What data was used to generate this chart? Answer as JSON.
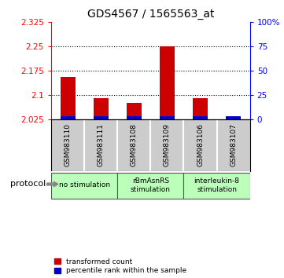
{
  "title": "GDS4567 / 1565563_at",
  "samples": [
    "GSM983110",
    "GSM983111",
    "GSM983108",
    "GSM983109",
    "GSM983106",
    "GSM983107"
  ],
  "red_values": [
    2.155,
    2.09,
    2.075,
    2.25,
    2.09,
    2.035
  ],
  "blue_percentiles": [
    3,
    3,
    3,
    3,
    3,
    3
  ],
  "ylim": [
    2.025,
    2.325
  ],
  "yticks": [
    2.025,
    2.1,
    2.175,
    2.25,
    2.325
  ],
  "ytick_labels": [
    "2.025",
    "2.1",
    "2.175",
    "2.25",
    "2.325"
  ],
  "right_yticks": [
    0,
    25,
    50,
    75,
    100
  ],
  "right_ytick_labels": [
    "0",
    "25",
    "50",
    "75",
    "100%"
  ],
  "bar_bottom": 2.025,
  "group_spans": [
    {
      "start": 0,
      "end": 1,
      "label": "no stimulation",
      "color": "#bbffbb"
    },
    {
      "start": 2,
      "end": 3,
      "label": "rBmAsnRS\nstimulation",
      "color": "#bbffbb"
    },
    {
      "start": 4,
      "end": 5,
      "label": "interleukin-8\nstimulation",
      "color": "#bbffbb"
    }
  ],
  "red_color": "#cc0000",
  "blue_color": "#0000cc",
  "label_area_color": "#cccccc",
  "legend_red": "transformed count",
  "legend_blue": "percentile rank within the sample",
  "title_fontsize": 10,
  "tick_fontsize": 7.5,
  "bar_width": 0.45
}
